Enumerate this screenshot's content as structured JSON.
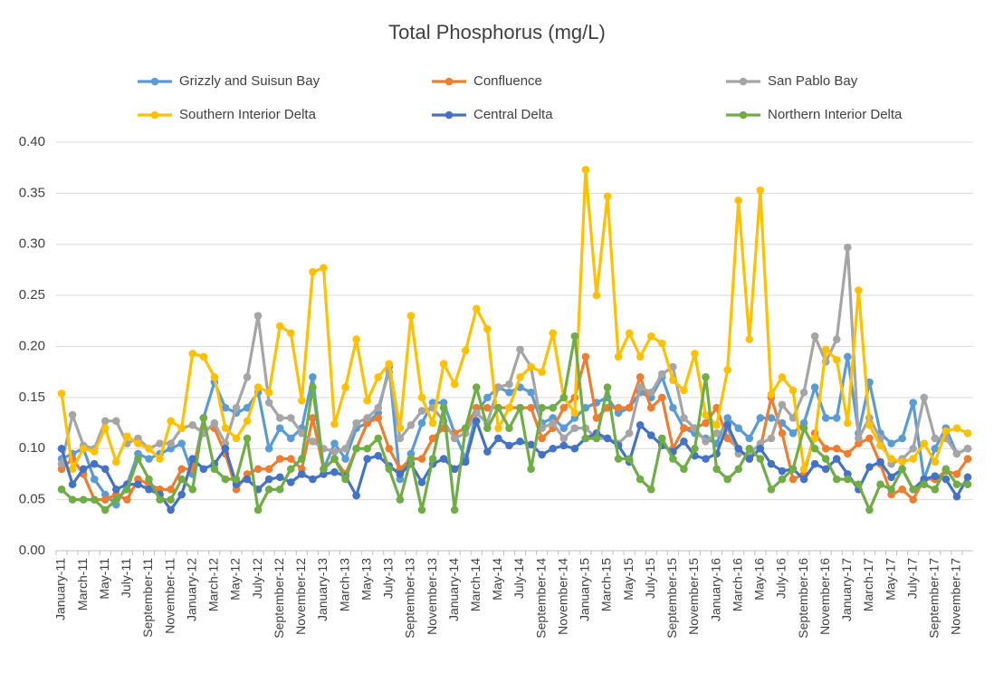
{
  "chart_data": {
    "type": "line",
    "title": "Total Phosphorus (mg/L)",
    "categories": [
      "January-11",
      null,
      "March-11",
      null,
      "May-11",
      null,
      "July-11",
      null,
      "September-11",
      null,
      "November-11",
      null,
      "January-12",
      null,
      "March-12",
      null,
      "May-12",
      null,
      "July-12",
      null,
      "September-12",
      null,
      "November-12",
      null,
      "January-13",
      null,
      "March-13",
      null,
      "May-13",
      null,
      "July-13",
      null,
      "September-13",
      null,
      "November-13",
      null,
      "January-14",
      null,
      "March-14",
      null,
      "May-14",
      null,
      "July-14",
      null,
      "September-14",
      null,
      "November-14",
      null,
      "January-15",
      null,
      "March-15",
      null,
      "May-15",
      null,
      "July-15",
      null,
      "September-15",
      null,
      "November-15",
      null,
      "January-16",
      null,
      "March-16",
      null,
      "May-16",
      null,
      "July-16",
      null,
      "September-16",
      null,
      "November-16",
      null,
      "January-17",
      null,
      "March-17",
      null,
      "May-17",
      null,
      "July-17",
      null,
      "September-17",
      null,
      "November-17",
      null
    ],
    "ylim": [
      0,
      0.4
    ],
    "yticks": [
      {
        "value": 0,
        "label": "0.00"
      },
      {
        "value": 0.05,
        "label": "0.05"
      },
      {
        "value": 0.1,
        "label": "0.10"
      },
      {
        "value": 0.15,
        "label": "0.15"
      },
      {
        "value": 0.2,
        "label": "0.20"
      },
      {
        "value": 0.25,
        "label": "0.25"
      },
      {
        "value": 0.3,
        "label": "0.30"
      },
      {
        "value": 0.35,
        "label": "0.35"
      },
      {
        "value": 0.4,
        "label": "0.40"
      }
    ],
    "grid": true,
    "legend": "top",
    "series": [
      {
        "name": "Grizzly and Suisun Bay",
        "color": "#5b9bd5",
        "values": [
          0.09,
          0.095,
          0.1,
          0.07,
          0.055,
          0.045,
          0.065,
          0.095,
          0.09,
          0.095,
          0.1,
          0.105,
          0.075,
          0.13,
          0.165,
          0.14,
          0.135,
          0.14,
          0.155,
          0.1,
          0.12,
          0.11,
          0.12,
          0.17,
          0.08,
          0.105,
          0.09,
          0.12,
          0.125,
          0.135,
          0.18,
          0.07,
          0.095,
          0.125,
          0.145,
          0.145,
          0.115,
          0.09,
          0.135,
          0.15,
          0.16,
          0.155,
          0.16,
          0.155,
          0.125,
          0.13,
          0.12,
          0.13,
          0.14,
          0.145,
          0.15,
          0.135,
          0.14,
          0.155,
          0.15,
          0.17,
          0.14,
          0.12,
          0.115,
          0.11,
          0.105,
          0.13,
          0.12,
          0.11,
          0.13,
          0.13,
          0.125,
          0.115,
          0.125,
          0.16,
          0.13,
          0.13,
          0.19,
          0.115,
          0.165,
          0.115,
          0.105,
          0.11,
          0.145,
          0.07,
          0.1,
          0.12,
          0.095,
          0.1
        ]
      },
      {
        "name": "Confluence",
        "color": "#ed7d31",
        "values": [
          0.08,
          0.09,
          0.075,
          0.05,
          0.05,
          0.055,
          0.05,
          0.07,
          0.065,
          0.06,
          0.06,
          0.08,
          0.08,
          0.12,
          0.12,
          0.095,
          0.06,
          0.075,
          0.08,
          0.08,
          0.09,
          0.09,
          0.08,
          0.13,
          0.08,
          0.09,
          0.075,
          0.1,
          0.125,
          0.13,
          0.1,
          0.08,
          0.09,
          0.09,
          0.11,
          0.12,
          0.115,
          0.12,
          0.14,
          0.14,
          0.14,
          0.14,
          0.14,
          0.14,
          0.11,
          0.12,
          0.14,
          0.15,
          0.19,
          0.13,
          0.14,
          0.14,
          0.14,
          0.17,
          0.14,
          0.15,
          0.1,
          0.12,
          0.12,
          0.125,
          0.14,
          0.11,
          0.1,
          0.09,
          0.1,
          0.15,
          0.115,
          0.07,
          0.075,
          0.115,
          0.1,
          0.1,
          0.095,
          0.105,
          0.11,
          0.085,
          0.055,
          0.06,
          0.05,
          0.07,
          0.07,
          0.078,
          0.075,
          0.09
        ]
      },
      {
        "name": "San Pablo Bay",
        "color": "#a5a5a5",
        "values": [
          0.085,
          0.133,
          0.103,
          0.1,
          0.127,
          0.127,
          0.105,
          0.11,
          0.1,
          0.105,
          0.105,
          0.12,
          0.123,
          0.115,
          0.125,
          0.105,
          0.14,
          0.17,
          0.23,
          0.145,
          0.13,
          0.13,
          0.115,
          0.107,
          0.1,
          0.097,
          0.1,
          0.125,
          0.13,
          0.14,
          0.175,
          0.11,
          0.123,
          0.137,
          0.14,
          0.127,
          0.11,
          0.115,
          0.135,
          0.125,
          0.16,
          0.163,
          0.197,
          0.18,
          0.12,
          0.125,
          0.11,
          0.12,
          0.12,
          0.11,
          0.11,
          0.105,
          0.115,
          0.16,
          0.155,
          0.173,
          0.18,
          0.13,
          0.12,
          0.107,
          0.115,
          0.12,
          0.095,
          0.095,
          0.105,
          0.11,
          0.143,
          0.13,
          0.155,
          0.21,
          0.185,
          0.207,
          0.297,
          0.11,
          0.13,
          0.11,
          0.085,
          0.09,
          0.1,
          0.15,
          0.11,
          0.11,
          0.095,
          0.1
        ]
      },
      {
        "name": "Southern Interior Delta",
        "color": "#ffc000",
        "values": [
          0.154,
          0.08,
          0.1,
          0.097,
          0.12,
          0.087,
          0.112,
          0.105,
          0.1,
          0.09,
          0.127,
          0.12,
          0.193,
          0.19,
          0.17,
          0.12,
          0.11,
          0.127,
          0.16,
          0.155,
          0.22,
          0.213,
          0.147,
          0.273,
          0.277,
          0.124,
          0.16,
          0.207,
          0.147,
          0.17,
          0.183,
          0.12,
          0.23,
          0.15,
          0.125,
          0.183,
          0.163,
          0.196,
          0.237,
          0.217,
          0.12,
          0.14,
          0.17,
          0.18,
          0.175,
          0.213,
          0.15,
          0.135,
          0.373,
          0.25,
          0.347,
          0.19,
          0.213,
          0.19,
          0.21,
          0.203,
          0.167,
          0.157,
          0.193,
          0.133,
          0.123,
          0.177,
          0.343,
          0.207,
          0.353,
          0.153,
          0.17,
          0.157,
          0.08,
          0.11,
          0.197,
          0.187,
          0.125,
          0.255,
          0.123,
          0.103,
          0.09,
          0.087,
          0.09,
          0.105,
          0.087,
          0.117,
          0.12,
          0.115
        ]
      },
      {
        "name": "Central Delta",
        "color": "#4472c4",
        "values": [
          0.1,
          0.065,
          0.08,
          0.085,
          0.08,
          0.06,
          0.065,
          0.065,
          0.06,
          0.055,
          0.04,
          0.055,
          0.09,
          0.08,
          0.085,
          0.1,
          0.065,
          0.07,
          0.06,
          0.07,
          0.072,
          0.067,
          0.075,
          0.07,
          0.075,
          0.077,
          0.073,
          0.054,
          0.09,
          0.093,
          0.083,
          0.075,
          0.085,
          0.067,
          0.085,
          0.09,
          0.08,
          0.087,
          0.127,
          0.097,
          0.11,
          0.103,
          0.107,
          0.104,
          0.094,
          0.1,
          0.103,
          0.1,
          0.11,
          0.115,
          0.11,
          0.103,
          0.087,
          0.123,
          0.113,
          0.103,
          0.097,
          0.107,
          0.093,
          0.09,
          0.095,
          0.123,
          0.1,
          0.09,
          0.1,
          0.085,
          0.078,
          0.08,
          0.07,
          0.085,
          0.08,
          0.09,
          0.075,
          0.06,
          0.082,
          0.087,
          0.072,
          0.08,
          0.06,
          0.07,
          0.073,
          0.07,
          0.053,
          0.072
        ]
      },
      {
        "name": "Northern Interior Delta",
        "color": "#70ad47",
        "values": [
          0.06,
          0.05,
          0.05,
          0.05,
          0.04,
          0.05,
          0.06,
          0.09,
          0.07,
          0.05,
          0.05,
          0.07,
          0.06,
          0.13,
          0.08,
          0.07,
          0.07,
          0.11,
          0.04,
          0.06,
          0.06,
          0.08,
          0.09,
          0.16,
          0.08,
          0.09,
          0.07,
          0.1,
          0.1,
          0.11,
          0.08,
          0.05,
          0.09,
          0.04,
          0.09,
          0.14,
          0.04,
          0.12,
          0.16,
          0.12,
          0.14,
          0.12,
          0.14,
          0.08,
          0.14,
          0.14,
          0.15,
          0.21,
          0.11,
          0.11,
          0.16,
          0.09,
          0.09,
          0.07,
          0.06,
          0.11,
          0.09,
          0.08,
          0.1,
          0.17,
          0.08,
          0.07,
          0.08,
          0.1,
          0.09,
          0.06,
          0.07,
          0.08,
          0.12,
          0.1,
          0.09,
          0.07,
          0.07,
          0.065,
          0.04,
          0.065,
          0.06,
          0.08,
          0.06,
          0.065,
          0.06,
          0.08,
          0.065,
          0.065
        ]
      }
    ]
  }
}
